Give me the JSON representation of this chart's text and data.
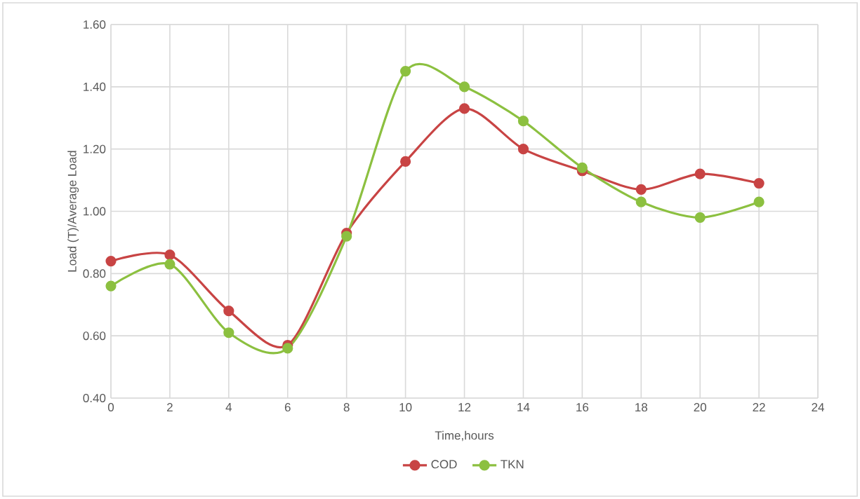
{
  "chart_data": {
    "type": "line",
    "xlabel": "Time,hours",
    "ylabel": "Load (T)/Average Load",
    "x": [
      0,
      2,
      4,
      6,
      8,
      10,
      12,
      14,
      16,
      18,
      20,
      22
    ],
    "series": [
      {
        "name": "COD",
        "color": "#c84444",
        "values": [
          0.84,
          0.86,
          0.68,
          0.57,
          0.93,
          1.16,
          1.33,
          1.2,
          1.13,
          1.07,
          1.12,
          1.09
        ]
      },
      {
        "name": "TKN",
        "color": "#8cc040",
        "values": [
          0.76,
          0.83,
          0.61,
          0.56,
          0.92,
          1.45,
          1.4,
          1.29,
          1.14,
          1.03,
          0.98,
          1.03
        ]
      }
    ],
    "xlim": [
      0,
      24
    ],
    "xticks": [
      0,
      2,
      4,
      6,
      8,
      10,
      12,
      14,
      16,
      18,
      20,
      22,
      24
    ],
    "ylim": [
      0.4,
      1.6
    ],
    "yticks": [
      {
        "value": 0.4,
        "label": "0.40"
      },
      {
        "value": 0.6,
        "label": "0.60"
      },
      {
        "value": 0.8,
        "label": "0.80"
      },
      {
        "value": 1.0,
        "label": "1.00"
      },
      {
        "value": 1.2,
        "label": "1.20"
      },
      {
        "value": 1.4,
        "label": "1.40"
      },
      {
        "value": 1.6,
        "label": "1.60"
      }
    ],
    "grid": true,
    "legend": "bottom",
    "marker": "circle",
    "line_style": "solid"
  }
}
